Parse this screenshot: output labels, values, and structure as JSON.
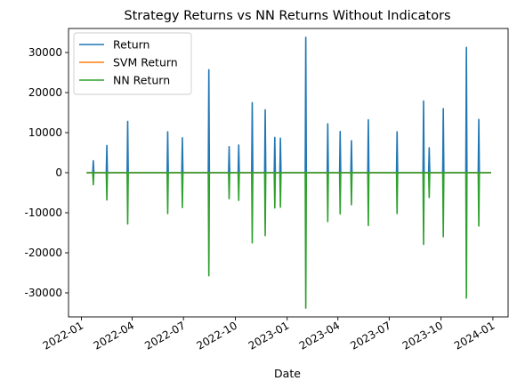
{
  "chart_data": {
    "type": "line",
    "title": "Strategy Returns vs NN Returns Without Indicators",
    "xlabel": "Date",
    "ylabel": "",
    "xlim": [
      "2021-12-09",
      "2024-01-28"
    ],
    "ylim": [
      -36000,
      36000
    ],
    "x_ticks": [
      {
        "date": "2022-01-01",
        "label": "2022-01"
      },
      {
        "date": "2022-04-01",
        "label": "2022-04"
      },
      {
        "date": "2022-07-01",
        "label": "2022-07"
      },
      {
        "date": "2022-10-01",
        "label": "2022-10"
      },
      {
        "date": "2023-01-01",
        "label": "2023-01"
      },
      {
        "date": "2023-04-01",
        "label": "2023-04"
      },
      {
        "date": "2023-07-01",
        "label": "2023-07"
      },
      {
        "date": "2023-10-01",
        "label": "2023-10"
      },
      {
        "date": "2024-01-01",
        "label": "2024-01"
      }
    ],
    "y_ticks": [
      -30000,
      -20000,
      -10000,
      0,
      10000,
      20000,
      30000
    ],
    "grid": false,
    "legend_position": "top-left",
    "date_range": [
      "2022-01-10",
      "2023-12-29"
    ],
    "spikes": [
      {
        "date": "2022-01-22",
        "value": 3000
      },
      {
        "date": "2022-02-15",
        "value": 6800
      },
      {
        "date": "2022-03-24",
        "value": 12800
      },
      {
        "date": "2022-06-03",
        "value": 10200
      },
      {
        "date": "2022-06-29",
        "value": 8700
      },
      {
        "date": "2022-08-15",
        "value": 25700
      },
      {
        "date": "2022-09-20",
        "value": 6500
      },
      {
        "date": "2022-10-07",
        "value": 6900
      },
      {
        "date": "2022-10-31",
        "value": 17500
      },
      {
        "date": "2022-11-23",
        "value": 15700
      },
      {
        "date": "2022-12-10",
        "value": 8800
      },
      {
        "date": "2022-12-20",
        "value": 8600
      },
      {
        "date": "2023-02-03",
        "value": 33800
      },
      {
        "date": "2023-03-14",
        "value": 12200
      },
      {
        "date": "2023-04-05",
        "value": 10300
      },
      {
        "date": "2023-04-25",
        "value": 8000
      },
      {
        "date": "2023-05-25",
        "value": 13200
      },
      {
        "date": "2023-07-15",
        "value": 10200
      },
      {
        "date": "2023-08-31",
        "value": 17900
      },
      {
        "date": "2023-09-10",
        "value": 6200
      },
      {
        "date": "2023-10-05",
        "value": 16000
      },
      {
        "date": "2023-11-15",
        "value": 31300
      },
      {
        "date": "2023-12-07",
        "value": 13300
      }
    ],
    "series": [
      {
        "name": "Return",
        "color": "#1f77b4",
        "spike_sign": 1
      },
      {
        "name": "SVM Return",
        "color": "#ff7f0e",
        "spike_sign": 0
      },
      {
        "name": "NN Return",
        "color": "#2ca02c",
        "spike_sign": -1
      }
    ]
  }
}
